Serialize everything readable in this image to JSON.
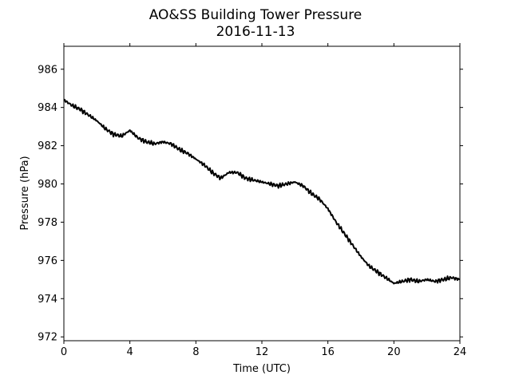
{
  "chart_data": {
    "type": "line",
    "title": "AO&SS Building Tower Pressure",
    "subtitle": "2016-11-13",
    "xlabel": "Time (UTC)",
    "ylabel": "Pressure (hPa)",
    "xlim": [
      0,
      24
    ],
    "ylim": [
      971.8,
      987.2
    ],
    "xticks": [
      0,
      4,
      8,
      12,
      16,
      20,
      24
    ],
    "yticks": [
      972,
      974,
      976,
      978,
      980,
      982,
      984,
      986
    ],
    "grid": false,
    "line_color": "#000000",
    "series": [
      {
        "x": [
          0,
          0.5,
          1,
          1.5,
          2,
          2.5,
          3,
          3.5,
          4,
          4.5,
          5,
          5.5,
          6,
          6.5,
          7,
          7.5,
          8,
          8.5,
          9,
          9.5,
          10,
          10.5,
          11,
          11.5,
          12,
          12.5,
          13,
          13.5,
          14,
          14.5,
          15,
          15.5,
          16,
          16.5,
          17,
          17.5,
          18,
          18.5,
          19,
          19.5,
          20,
          20.5,
          21,
          21.5,
          22,
          22.5,
          23,
          23.5,
          24
        ],
        "y": [
          984.4,
          984.1,
          983.9,
          983.6,
          983.3,
          982.9,
          982.6,
          982.5,
          982.8,
          982.4,
          982.2,
          982.1,
          982.2,
          982.1,
          981.8,
          981.6,
          981.3,
          981.0,
          980.6,
          980.3,
          980.6,
          980.6,
          980.3,
          980.2,
          980.1,
          980.0,
          979.9,
          980.0,
          980.1,
          979.9,
          979.5,
          979.2,
          978.7,
          978.0,
          977.4,
          976.8,
          976.2,
          975.7,
          975.4,
          975.1,
          974.8,
          974.9,
          975.0,
          974.9,
          975.0,
          974.9,
          975.0,
          975.1,
          975.0
        ]
      }
    ]
  }
}
